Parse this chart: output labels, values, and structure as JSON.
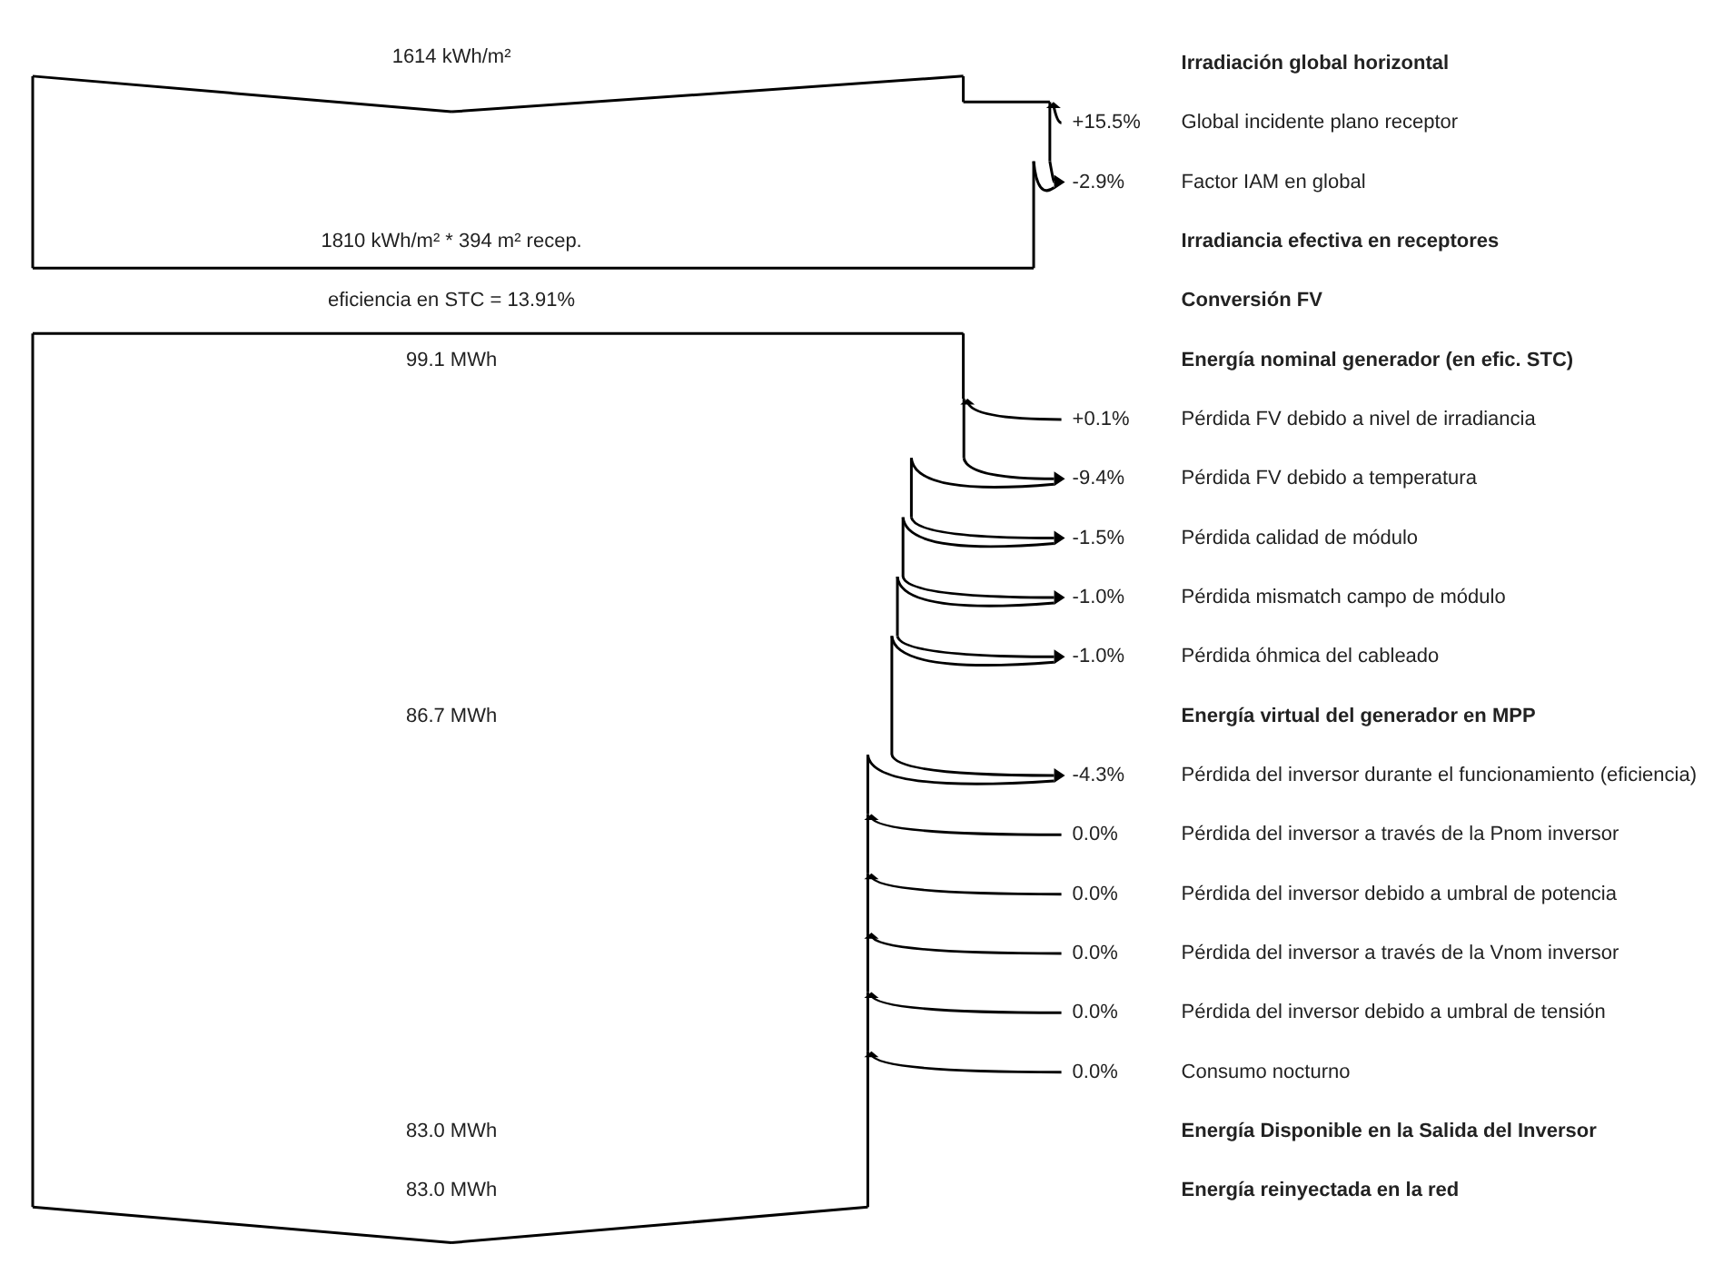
{
  "chart_data": {
    "type": "other",
    "categories": [
      "Irradiación global horizontal",
      "Global incidente plano receptor",
      "Factor IAM en global",
      "Irradiancia efectiva en receptores",
      "Conversión FV",
      "Energía nominal generador (en efic. STC)",
      "Pérdida FV debido a nivel de irradiancia",
      "Pérdida FV debido a temperatura",
      "Pérdida calidad de módulo",
      "Pérdida mismatch campo de módulo",
      "Pérdida óhmica del cableado",
      "Energía virtual del generador en MPP",
      "Pérdida del inversor durante el funcionamiento (eficiencia)",
      "Pérdida del inversor a través de la Pnom inversor",
      "Pérdida del inversor debido a umbral de potencia",
      "Pérdida del inversor a través de la Vnom inversor",
      "Pérdida del inversor debido a umbral de tensión",
      "Consumo nocturno",
      "Energía Disponible en la Salida del Inversor",
      "Energía reinyectada en la red"
    ],
    "series": [
      {
        "color": "#000000",
        "values": [
          null,
          15.5,
          -2.9,
          null,
          null,
          null,
          0.1,
          -9.4,
          -1.5,
          -1.0,
          -1.0,
          null,
          -4.3,
          0.0,
          0.0,
          0.0,
          0.0,
          0.0,
          null,
          null
        ],
        "value_labels": [
          null,
          "+15.5%",
          "-2.9%",
          null,
          null,
          null,
          "+0.1%",
          "-9.4%",
          "-1.5%",
          "-1.0%",
          "-1.0%",
          null,
          "-4.3%",
          "0.0%",
          "0.0%",
          "0.0%",
          "0.0%",
          "0.0%",
          null,
          null
        ]
      },
      {
        "values": [
          1614,
          null,
          null,
          1810,
          13.91,
          99.1,
          null,
          null,
          null,
          null,
          null,
          86.7,
          null,
          null,
          null,
          null,
          null,
          null,
          83.0,
          83.0
        ],
        "value_labels": [
          "1614 kWh/m²",
          null,
          null,
          "1810 kWh/m² * 394 m² recep.",
          "eficiencia en STC = 13.91%",
          "99.1 MWh",
          null,
          null,
          null,
          null,
          null,
          "86.7 MWh",
          null,
          null,
          null,
          null,
          null,
          null,
          "83.0 MWh",
          "83.0 MWh"
        ]
      }
    ]
  }
}
